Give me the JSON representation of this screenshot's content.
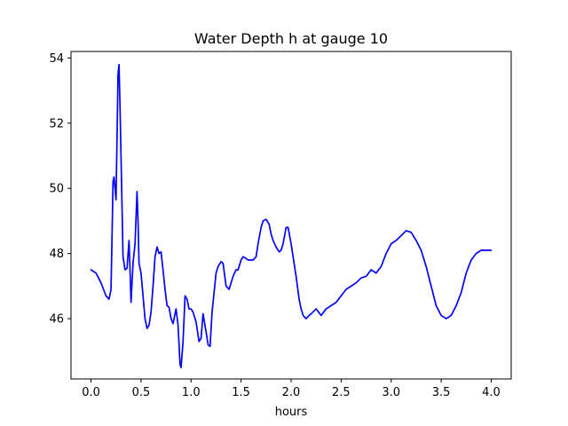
{
  "chart_data": {
    "type": "line",
    "title": "Water Depth h at gauge 10",
    "xlabel": "hours",
    "ylabel": "",
    "xlim": [
      -0.2,
      4.2
    ],
    "ylim": [
      44.15,
      54.2
    ],
    "xticks": [
      0.0,
      0.5,
      1.0,
      1.5,
      2.0,
      2.5,
      3.0,
      3.5,
      4.0
    ],
    "xtick_labels": [
      "0.0",
      "0.5",
      "1.0",
      "1.5",
      "2.0",
      "2.5",
      "3.0",
      "3.5",
      "4.0"
    ],
    "yticks": [
      46,
      48,
      50,
      52,
      54
    ],
    "ytick_labels": [
      "46",
      "48",
      "50",
      "52",
      "54"
    ],
    "grid": false,
    "series": [
      {
        "color": "#0000ff",
        "x": [
          0.0,
          0.05,
          0.1,
          0.15,
          0.18,
          0.2,
          0.21,
          0.22,
          0.23,
          0.24,
          0.25,
          0.26,
          0.27,
          0.28,
          0.29,
          0.3,
          0.32,
          0.34,
          0.36,
          0.38,
          0.39,
          0.4,
          0.42,
          0.44,
          0.46,
          0.47,
          0.48,
          0.5,
          0.52,
          0.54,
          0.56,
          0.58,
          0.6,
          0.62,
          0.64,
          0.66,
          0.68,
          0.7,
          0.72,
          0.74,
          0.76,
          0.78,
          0.8,
          0.82,
          0.85,
          0.87,
          0.89,
          0.9,
          0.92,
          0.94,
          0.96,
          0.98,
          1.0,
          1.02,
          1.05,
          1.08,
          1.1,
          1.12,
          1.15,
          1.17,
          1.19,
          1.21,
          1.23,
          1.25,
          1.27,
          1.3,
          1.32,
          1.35,
          1.38,
          1.4,
          1.42,
          1.45,
          1.47,
          1.5,
          1.52,
          1.55,
          1.57,
          1.6,
          1.62,
          1.65,
          1.67,
          1.7,
          1.72,
          1.75,
          1.78,
          1.8,
          1.82,
          1.85,
          1.88,
          1.9,
          1.92,
          1.95,
          1.97,
          2.0,
          2.02,
          2.05,
          2.08,
          2.1,
          2.12,
          2.15,
          2.18,
          2.2,
          2.25,
          2.3,
          2.35,
          2.4,
          2.45,
          2.5,
          2.55,
          2.6,
          2.65,
          2.7,
          2.75,
          2.8,
          2.85,
          2.9,
          2.95,
          3.0,
          3.05,
          3.1,
          3.15,
          3.2,
          3.25,
          3.3,
          3.35,
          3.4,
          3.45,
          3.5,
          3.55,
          3.6,
          3.65,
          3.7,
          3.75,
          3.8,
          3.85,
          3.9,
          3.95,
          4.0
        ],
        "y": [
          47.5,
          47.4,
          47.1,
          46.7,
          46.6,
          46.9,
          48.5,
          50.2,
          50.35,
          50.0,
          49.65,
          51.5,
          53.5,
          53.8,
          52.5,
          51.0,
          47.9,
          47.5,
          47.55,
          48.4,
          47.5,
          46.5,
          47.7,
          48.3,
          49.9,
          49.0,
          47.7,
          47.4,
          46.7,
          46.0,
          45.7,
          45.8,
          46.2,
          47.0,
          47.9,
          48.2,
          48.0,
          48.05,
          47.5,
          46.9,
          46.4,
          46.35,
          46.0,
          45.85,
          46.3,
          45.8,
          44.6,
          44.5,
          45.3,
          46.7,
          46.6,
          46.3,
          46.3,
          46.2,
          45.9,
          45.3,
          45.4,
          46.15,
          45.6,
          45.2,
          45.15,
          46.2,
          46.8,
          47.4,
          47.6,
          47.75,
          47.7,
          47.0,
          46.9,
          47.1,
          47.3,
          47.5,
          47.5,
          47.8,
          47.9,
          47.85,
          47.8,
          47.8,
          47.8,
          47.9,
          48.3,
          48.8,
          49.0,
          49.05,
          48.9,
          48.6,
          48.4,
          48.2,
          48.05,
          48.1,
          48.3,
          48.8,
          48.8,
          48.3,
          47.9,
          47.3,
          46.6,
          46.3,
          46.1,
          46.0,
          46.1,
          46.15,
          46.3,
          46.1,
          46.3,
          46.4,
          46.5,
          46.7,
          46.9,
          47.0,
          47.1,
          47.25,
          47.3,
          47.5,
          47.4,
          47.6,
          48.0,
          48.3,
          48.4,
          48.55,
          48.7,
          48.65,
          48.4,
          48.1,
          47.6,
          47.0,
          46.4,
          46.1,
          46.0,
          46.1,
          46.4,
          46.8,
          47.4,
          47.8,
          48.0,
          48.1,
          48.1,
          48.1
        ]
      }
    ]
  }
}
